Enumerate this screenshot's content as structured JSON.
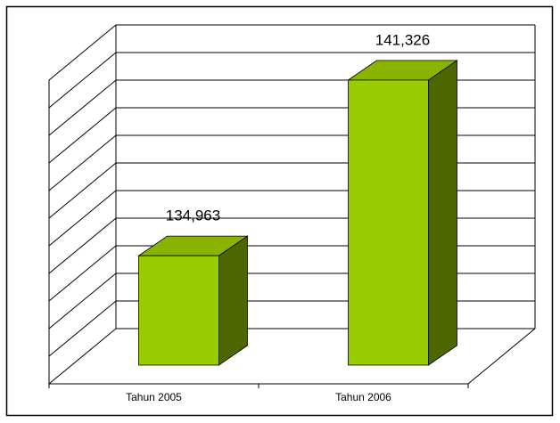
{
  "chart_data": {
    "type": "bar3d",
    "categories": [
      "Tahun 2005",
      "Tahun 2006"
    ],
    "values": [
      134963,
      141326
    ],
    "value_labels": [
      "134,963",
      "141,326"
    ],
    "color": "#99cc00",
    "ylim": [
      131000,
      142000
    ],
    "yticks": [
      131000,
      132000,
      133000,
      134000,
      135000,
      136000,
      137000,
      138000,
      139000,
      140000,
      141000,
      142000
    ],
    "grid": true
  }
}
